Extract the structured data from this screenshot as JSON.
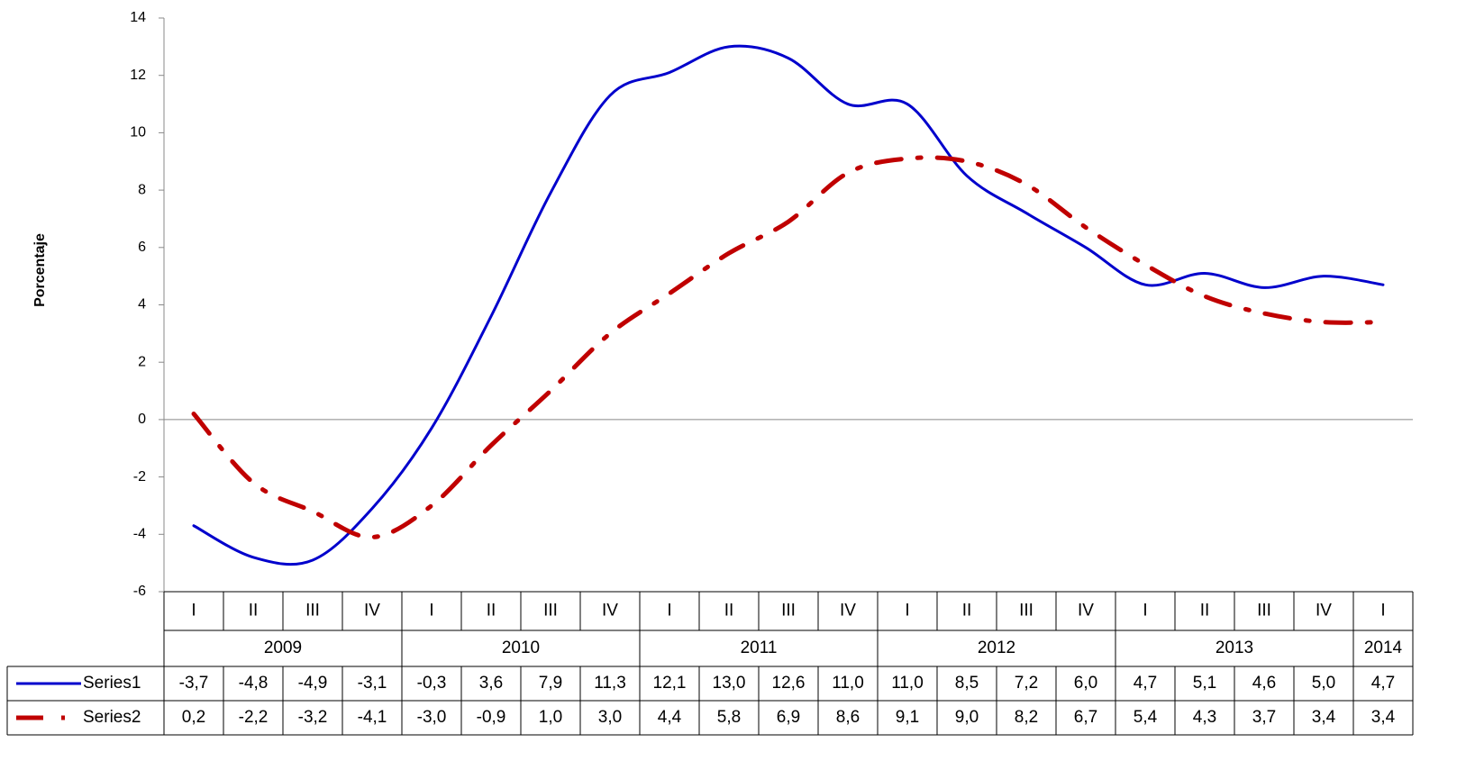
{
  "chart_data": {
    "type": "line",
    "y_label": "Porcentaje",
    "categories": [
      "I",
      "II",
      "III",
      "IV",
      "I",
      "II",
      "III",
      "IV",
      "I",
      "II",
      "III",
      "IV",
      "I",
      "II",
      "III",
      "IV",
      "I",
      "II",
      "III",
      "IV",
      "I"
    ],
    "years": [
      "2009",
      null,
      null,
      null,
      "2010",
      null,
      null,
      null,
      "2011",
      null,
      null,
      null,
      "2012",
      null,
      null,
      null,
      "2013",
      null,
      null,
      null,
      "2014"
    ],
    "series": [
      {
        "name": "Series1",
        "color": "#0000cc",
        "style": "solid",
        "values": [
          -3.7,
          -4.8,
          -4.9,
          -3.1,
          -0.3,
          3.6,
          7.9,
          11.3,
          12.1,
          13.0,
          12.6,
          11.0,
          11.0,
          8.5,
          7.2,
          6.0,
          4.7,
          5.1,
          4.6,
          5.0,
          4.7
        ],
        "value_labels": [
          "-3,7",
          "-4,8",
          "-4,9",
          "-3,1",
          "-0,3",
          "3,6",
          "7,9",
          "11,3",
          "12,1",
          "13,0",
          "12,6",
          "11,0",
          "11,0",
          "8,5",
          "7,2",
          "6,0",
          "4,7",
          "5,1",
          "4,6",
          "5,0",
          "4,7"
        ]
      },
      {
        "name": "Series2",
        "color": "#c00000",
        "style": "dashdot",
        "values": [
          0.2,
          -2.2,
          -3.2,
          -4.1,
          -3.0,
          -0.9,
          1.0,
          3.0,
          4.4,
          5.8,
          6.9,
          8.6,
          9.1,
          9.0,
          8.2,
          6.7,
          5.4,
          4.3,
          3.7,
          3.4,
          3.4
        ],
        "value_labels": [
          "0,2",
          "-2,2",
          "-3,2",
          "-4,1",
          "-3,0",
          "-0,9",
          "1,0",
          "3,0",
          "4,4",
          "5,8",
          "6,9",
          "8,6",
          "9,1",
          "9,0",
          "8,2",
          "6,7",
          "5,4",
          "4,3",
          "3,7",
          "3,4",
          "3,4"
        ]
      }
    ],
    "ylim": [
      -6,
      14
    ],
    "yticks": [
      -6,
      -4,
      -2,
      0,
      2,
      4,
      6,
      8,
      10,
      12,
      14
    ]
  }
}
